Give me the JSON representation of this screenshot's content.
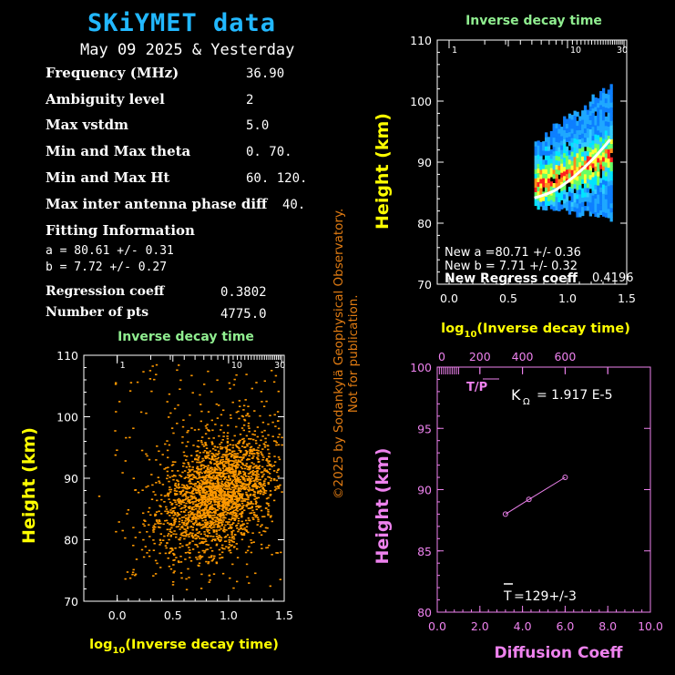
{
  "header": {
    "title": "SKiYMET data",
    "date": "May 09 2025 & Yesterday"
  },
  "params": [
    {
      "label": "Frequency (MHz)",
      "value": "36.90"
    },
    {
      "label": "Ambiguity level",
      "value": "2"
    },
    {
      "label": "Max vstdm",
      "value": "5.0"
    },
    {
      "label": "Min and Max theta",
      "value": "0.  70."
    },
    {
      "label": "Min and Max Ht",
      "value": "60. 120."
    },
    {
      "label": "Max inter antenna phase diff",
      "value": "40."
    }
  ],
  "fitting": {
    "heading": "Fitting Information",
    "a_line": "a = 80.61 +/-  0.31",
    "b_line": "b = 7.72  +/-  0.27",
    "regression_label": "Regression coeff",
    "regression_value": "0.3802",
    "npts_label": "Number of pts",
    "npts_value": "4775.0"
  },
  "copyright": {
    "line1": "©2025 by Sodankylä Geophysical Observatory.",
    "line2": "Not for publication."
  },
  "colors": {
    "title": "#22b8ff",
    "yellow": "#ffff00",
    "green_label": "#90ee90",
    "orange": "#ff9900",
    "magenta": "#ee82ee",
    "copyright": "#e07b12"
  },
  "chart_data": [
    {
      "id": "scatter",
      "type": "scatter",
      "title": "Inverse decay time",
      "xlabel_prefix": "log",
      "xlabel_sub": "10",
      "xlabel_suffix": "(Inverse decay time)",
      "ylabel": "Height (km)",
      "xlim": [
        -0.3,
        1.5
      ],
      "ylim": [
        70,
        110
      ],
      "xticks": [
        0.0,
        0.5,
        1.0,
        1.5
      ],
      "xtick_labels": [
        "0.0",
        "0.5",
        "1.0",
        "1.5"
      ],
      "yticks": [
        70,
        80,
        90,
        100,
        110
      ],
      "ytick_labels": [
        "70",
        "80",
        "90",
        "100",
        "110"
      ],
      "top_ticks": [
        1,
        10,
        30
      ],
      "top_tick_labels": [
        "1",
        "10",
        "30"
      ],
      "color": "#ff9900",
      "points": {
        "count": 4775,
        "center_x": 0.92,
        "center_y": 87.8,
        "spread_x": 0.26,
        "spread_y": 4.6,
        "slope": 6.5
      }
    },
    {
      "id": "density",
      "type": "heatmap",
      "title": "Inverse decay time",
      "xlabel_prefix": "log",
      "xlabel_sub": "10",
      "xlabel_suffix": "(Inverse decay time)",
      "ylabel": "Height (km)",
      "xlim": [
        -0.1,
        1.5
      ],
      "ylim": [
        70,
        110
      ],
      "xticks": [
        0.0,
        0.5,
        1.0,
        1.5
      ],
      "xtick_labels": [
        "0.0",
        "0.5",
        "1.0",
        "1.5"
      ],
      "yticks": [
        70,
        80,
        90,
        100,
        110
      ],
      "ytick_labels": [
        "70",
        "80",
        "90",
        "100",
        "110"
      ],
      "top_ticks": [
        1,
        10,
        30
      ],
      "top_tick_labels": [
        "1",
        "10",
        "30"
      ],
      "x_range": [
        0.72,
        1.37
      ],
      "y_range": [
        80.5,
        102
      ],
      "fit_line": {
        "a": 80.71,
        "b": 7.71,
        "x_from": 0.72,
        "x_to": 1.36,
        "color": "#ffffff"
      },
      "annotations": [
        "New a =80.71 +/-  0.36",
        "New b = 7.71  +/-  0.32"
      ],
      "regress_label": "New Regress coeff",
      "regress_value": "0.4196"
    },
    {
      "id": "diffusion",
      "type": "line",
      "xlabel": "Diffusion Coeff",
      "ylabel": "Height (km)",
      "xlim": [
        0,
        10
      ],
      "ylim": [
        80,
        100
      ],
      "xticks": [
        0,
        2,
        4,
        6,
        8,
        10
      ],
      "xtick_labels": [
        "0.0",
        "2.0",
        "4.0",
        "6.0",
        "8.0",
        "10.0"
      ],
      "yticks": [
        80,
        85,
        90,
        95,
        100
      ],
      "ytick_labels": [
        "80",
        "85",
        "90",
        "95",
        "100"
      ],
      "top_axis": {
        "min": 0,
        "max": 1000,
        "ticks": [
          0,
          200,
          400,
          600
        ],
        "labels": [
          "0",
          "200",
          "400",
          "600"
        ]
      },
      "x": [
        3.2,
        4.3,
        6.0
      ],
      "y": [
        88.0,
        89.2,
        91.0
      ],
      "color": "#ee82ee",
      "tp_label": "T/P",
      "k_label": "K",
      "k_sub": "Ω",
      "k_value": "= 1.917 E-5",
      "t_label": "T",
      "t_value": "=129+/-3"
    }
  ]
}
